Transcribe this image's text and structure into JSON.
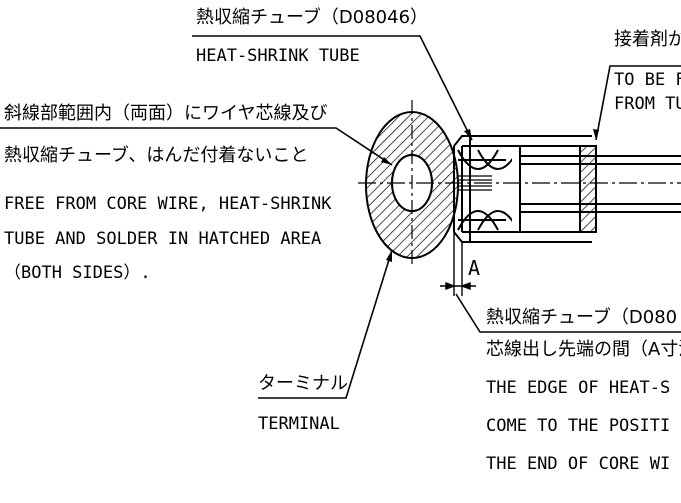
{
  "callouts": {
    "tube_ref": {
      "jp": "熱収縮チューブ（D08046）",
      "en": "HEAT-SHRINK TUBE"
    },
    "adhesive": {
      "jp": "接着剤が",
      "en_line1": "TO BE F",
      "en_line2": "FROM TU"
    },
    "hatched_area": {
      "jp_line1": "斜線部範囲内（両面）にワイヤ芯線及び",
      "jp_line2": "熱収縮チューブ、はんだ付着ないこと",
      "en_line1": "FREE FROM CORE WIRE, HEAT-SHRINK",
      "en_line2": "TUBE  AND SOLDER IN HATCHED AREA",
      "en_line3": "（BOTH SIDES）."
    },
    "terminal": {
      "jp": "ターミナル",
      "en": "TERMINAL"
    },
    "dimension": {
      "label": "A"
    },
    "tube_edge": {
      "jp_line1": "熱収縮チューブ（D080",
      "jp_line2": "芯線出し先端の間（A寸法",
      "en_line1": "THE EDGE OF HEAT-S",
      "en_line2": "COME TO THE POSITI",
      "en_line3": "THE END OF CORE WI"
    }
  }
}
